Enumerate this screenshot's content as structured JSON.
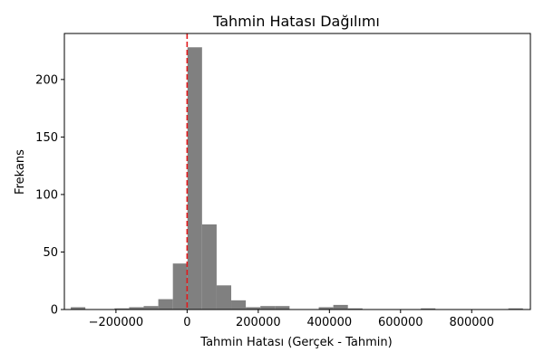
{
  "chart_data": {
    "type": "bar",
    "title": "Tahmin Hatası Dağılımı",
    "xlabel": "Tahmin Hatası (Gerçek - Tahmin)",
    "ylabel": "Frekans",
    "xlim": [
      -345000,
      965000
    ],
    "ylim": [
      0,
      240
    ],
    "xticks": [
      -200000,
      0,
      200000,
      400000,
      600000,
      800000
    ],
    "xtick_labels": [
      "−200000",
      "0",
      "200000",
      "400000",
      "600000",
      "800000"
    ],
    "yticks": [
      0,
      50,
      100,
      150,
      200
    ],
    "ytick_labels": [
      "0",
      "50",
      "100",
      "150",
      "200"
    ],
    "bin_width": 41000,
    "bins": [
      {
        "x0": -327000,
        "count": 2
      },
      {
        "x0": -286000,
        "count": 0
      },
      {
        "x0": -245000,
        "count": 0
      },
      {
        "x0": -204000,
        "count": 1
      },
      {
        "x0": -163000,
        "count": 2
      },
      {
        "x0": -122000,
        "count": 3
      },
      {
        "x0": -81000,
        "count": 9
      },
      {
        "x0": -40000,
        "count": 40
      },
      {
        "x0": 1000,
        "count": 228
      },
      {
        "x0": 42000,
        "count": 74
      },
      {
        "x0": 83000,
        "count": 21
      },
      {
        "x0": 124000,
        "count": 8
      },
      {
        "x0": 165000,
        "count": 2
      },
      {
        "x0": 206000,
        "count": 3
      },
      {
        "x0": 247000,
        "count": 3
      },
      {
        "x0": 288000,
        "count": 0
      },
      {
        "x0": 329000,
        "count": 0
      },
      {
        "x0": 370000,
        "count": 2
      },
      {
        "x0": 411000,
        "count": 4
      },
      {
        "x0": 452000,
        "count": 1
      },
      {
        "x0": 493000,
        "count": 0
      },
      {
        "x0": 534000,
        "count": 0
      },
      {
        "x0": 575000,
        "count": 0
      },
      {
        "x0": 616000,
        "count": 0
      },
      {
        "x0": 657000,
        "count": 1
      },
      {
        "x0": 698000,
        "count": 0
      },
      {
        "x0": 739000,
        "count": 0
      },
      {
        "x0": 780000,
        "count": 0
      },
      {
        "x0": 821000,
        "count": 0
      },
      {
        "x0": 862000,
        "count": 0
      },
      {
        "x0": 903000,
        "count": 1
      }
    ],
    "reference_line": {
      "x": 0,
      "color": "#e31a1c",
      "style": "dashed"
    },
    "bar_color": "#808080",
    "grid": false
  }
}
